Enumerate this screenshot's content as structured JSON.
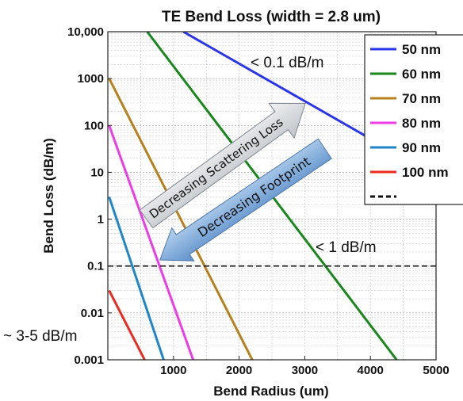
{
  "chart_data": {
    "type": "line",
    "title": "TE Bend Loss (width = 2.8 um)",
    "xlabel": "Bend Radius (um)",
    "ylabel": "Bend Loss (dB/m)",
    "xlim": [
      0,
      5000
    ],
    "ylim": [
      0.001,
      10000
    ],
    "yscale": "log",
    "grid": true,
    "legend_position": "top-right",
    "x_ticks": [
      {
        "value": 1000,
        "label": "1000"
      },
      {
        "value": 2000,
        "label": "2000"
      },
      {
        "value": 3000,
        "label": "3000"
      },
      {
        "value": 4000,
        "label": "4000"
      },
      {
        "value": 5000,
        "label": "5000"
      }
    ],
    "y_ticks": [
      {
        "value": 10000,
        "label": "10,000"
      },
      {
        "value": 1000,
        "label": "1000"
      },
      {
        "value": 100,
        "label": "100"
      },
      {
        "value": 10,
        "label": "10"
      },
      {
        "value": 1,
        "label": "1"
      },
      {
        "value": 0.1,
        "label": "0.1"
      },
      {
        "value": 0.01,
        "label": "0.01"
      },
      {
        "value": 0.001,
        "label": "0.001"
      }
    ],
    "series": [
      {
        "name": "50 nm",
        "color": "#2b35e6",
        "points": [
          [
            1150,
            10000
          ],
          [
            4300,
            30
          ]
        ]
      },
      {
        "name": "60 nm",
        "color": "#19871c",
        "points": [
          [
            600,
            10000
          ],
          [
            4400,
            0.001
          ]
        ]
      },
      {
        "name": "70 nm",
        "color": "#b8801c",
        "points": [
          [
            20,
            1000
          ],
          [
            2200,
            0.001
          ]
        ]
      },
      {
        "name": "80 nm",
        "color": "#ee3be6",
        "points": [
          [
            20,
            100
          ],
          [
            1300,
            0.001
          ]
        ]
      },
      {
        "name": "90 nm",
        "color": "#1e85c8",
        "points": [
          [
            20,
            3
          ],
          [
            850,
            0.001
          ]
        ]
      },
      {
        "name": "100 nm",
        "color": "#ec2a20",
        "points": [
          [
            20,
            0.03
          ],
          [
            560,
            0.001
          ]
        ]
      }
    ],
    "reference_line": {
      "name": "- -",
      "y": 0.1
    },
    "annotations": {
      "lt01": "< 0.1 dB/m",
      "lt1": "< 1 dB/m",
      "range35": "~ 3-5 dB/m",
      "scatter_arrow": "Decreasing Scattering Loss",
      "footprint_arrow": "Decreasing Footprint"
    }
  }
}
